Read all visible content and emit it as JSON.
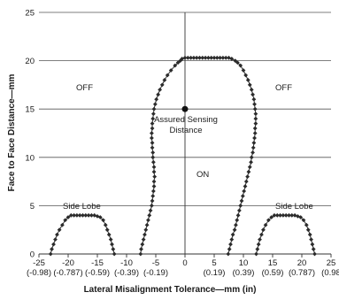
{
  "chart_data": {
    "type": "line",
    "title": "",
    "xlabel": "Lateral Misalignment Tolerance—mm (in)",
    "ylabel": "Face to Face Distance—mm",
    "xlim": [
      -25,
      25
    ],
    "ylim": [
      0,
      25
    ],
    "grid": "horizontal",
    "x_ticks": [
      {
        "value": -25,
        "mm": "-25",
        "inch": "(-0.98)"
      },
      {
        "value": -20,
        "mm": "-20",
        "inch": "(-0.787)"
      },
      {
        "value": -15,
        "mm": "-15",
        "inch": "(-0.59)"
      },
      {
        "value": -10,
        "mm": "-10",
        "inch": "(-0.39)"
      },
      {
        "value": -5,
        "mm": "-5",
        "inch": "(-0.19)"
      },
      {
        "value": 0,
        "mm": "0",
        "inch": ""
      },
      {
        "value": 5,
        "mm": "5",
        "inch": "(0.19)"
      },
      {
        "value": 10,
        "mm": "10",
        "inch": "(0.39)"
      },
      {
        "value": 15,
        "mm": "15",
        "inch": "(0.59)"
      },
      {
        "value": 20,
        "mm": "20",
        "inch": "(0.787)"
      },
      {
        "value": 25,
        "mm": "25",
        "inch": "(0.98"
      }
    ],
    "y_ticks": [
      "0",
      "5",
      "10",
      "15",
      "20",
      "25"
    ],
    "annotations": {
      "off_left": "OFF",
      "off_right": "OFF",
      "on": "ON",
      "assured_line1": "Assured Sensing",
      "assured_line2": "Distance",
      "side_lobe_left": "Side Lobe",
      "side_lobe_right": "Side Lobe"
    },
    "assured_point": {
      "x": 0,
      "y": 15
    },
    "series": [
      {
        "values": [
          [
            -7.6,
            0
          ],
          [
            -7.5,
            0.5
          ],
          [
            -7.3,
            1
          ],
          [
            -7.1,
            1.5
          ],
          [
            -6.9,
            2
          ],
          [
            -6.7,
            2.5
          ],
          [
            -6.5,
            3
          ],
          [
            -6.3,
            3.5
          ],
          [
            -6.1,
            4
          ],
          [
            -5.9,
            4.5
          ],
          [
            -5.7,
            5
          ],
          [
            -5.6,
            5.5
          ],
          [
            -5.5,
            6
          ],
          [
            -5.4,
            6.5
          ],
          [
            -5.3,
            7
          ],
          [
            -5.3,
            7.5
          ],
          [
            -5.2,
            8
          ],
          [
            -5.3,
            8.5
          ],
          [
            -5.3,
            9
          ],
          [
            -5.4,
            9.5
          ],
          [
            -5.5,
            10
          ],
          [
            -5.5,
            10.5
          ],
          [
            -5.6,
            11
          ],
          [
            -5.6,
            11.5
          ],
          [
            -5.7,
            12
          ],
          [
            -5.7,
            12.5
          ],
          [
            -5.6,
            13
          ],
          [
            -5.6,
            13.5
          ],
          [
            -5.5,
            14
          ],
          [
            -5.4,
            14.5
          ],
          [
            -5.3,
            15
          ],
          [
            -5.1,
            15.5
          ],
          [
            -4.9,
            16
          ],
          [
            -4.6,
            16.5
          ],
          [
            -4.3,
            17
          ],
          [
            -3.9,
            17.5
          ],
          [
            -3.5,
            18
          ],
          [
            -3,
            18.5
          ],
          [
            -2.4,
            19
          ],
          [
            -1.7,
            19.5
          ],
          [
            -1.2,
            19.8
          ],
          [
            -0.8,
            20
          ],
          [
            -0.5,
            20.2
          ],
          [
            0,
            20.3
          ],
          [
            0.5,
            20.3
          ],
          [
            1,
            20.3
          ],
          [
            1.5,
            20.3
          ],
          [
            2,
            20.3
          ],
          [
            2.5,
            20.3
          ],
          [
            3,
            20.3
          ],
          [
            3.5,
            20.3
          ],
          [
            4,
            20.3
          ],
          [
            4.5,
            20.3
          ],
          [
            5,
            20.3
          ],
          [
            5.5,
            20.3
          ],
          [
            6,
            20.3
          ],
          [
            6.5,
            20.3
          ],
          [
            7,
            20.3
          ],
          [
            7.5,
            20.3
          ],
          [
            8,
            20.2
          ],
          [
            8.6,
            20
          ],
          [
            9,
            19.8
          ],
          [
            9.5,
            19.5
          ],
          [
            10,
            19
          ],
          [
            10.4,
            18.5
          ],
          [
            10.8,
            18
          ],
          [
            11.1,
            17.5
          ],
          [
            11.4,
            17
          ],
          [
            11.6,
            16.5
          ],
          [
            11.8,
            16
          ],
          [
            11.9,
            15.5
          ],
          [
            12,
            15
          ],
          [
            12.1,
            14.5
          ],
          [
            12.1,
            14
          ],
          [
            12.1,
            13.5
          ],
          [
            12,
            13
          ],
          [
            12,
            12.5
          ],
          [
            11.9,
            12
          ],
          [
            11.8,
            11.5
          ],
          [
            11.7,
            11
          ],
          [
            11.6,
            10.5
          ],
          [
            11.4,
            10
          ],
          [
            11.3,
            9.5
          ],
          [
            11.1,
            9
          ],
          [
            10.9,
            8.5
          ],
          [
            10.7,
            8
          ],
          [
            10.5,
            7.5
          ],
          [
            10.3,
            7
          ],
          [
            10.1,
            6.5
          ],
          [
            9.9,
            6
          ],
          [
            9.7,
            5.5
          ],
          [
            9.5,
            5
          ],
          [
            9.3,
            4.5
          ],
          [
            9.1,
            4
          ],
          [
            8.9,
            3.5
          ],
          [
            8.7,
            3
          ],
          [
            8.5,
            2.5
          ],
          [
            8.2,
            2
          ],
          [
            8,
            1.5
          ],
          [
            7.8,
            1
          ],
          [
            7.6,
            0.5
          ],
          [
            7.4,
            0
          ]
        ]
      },
      {
        "values": [
          [
            -23,
            0
          ],
          [
            -22.8,
            0.5
          ],
          [
            -22.5,
            1
          ],
          [
            -22.2,
            1.5
          ],
          [
            -21.9,
            2
          ],
          [
            -21.5,
            2.5
          ],
          [
            -21,
            3
          ],
          [
            -20.5,
            3.5
          ],
          [
            -20,
            3.8
          ],
          [
            -19.5,
            4
          ],
          [
            -19,
            4
          ],
          [
            -18.5,
            4
          ],
          [
            -18,
            4
          ],
          [
            -17.5,
            4
          ],
          [
            -17,
            4
          ],
          [
            -16.5,
            4
          ],
          [
            -16,
            4
          ],
          [
            -15.5,
            4
          ],
          [
            -15,
            3.9
          ],
          [
            -14.5,
            3.8
          ],
          [
            -14,
            3.5
          ],
          [
            -13.6,
            3
          ],
          [
            -13.3,
            2.5
          ],
          [
            -13,
            2
          ],
          [
            -12.7,
            1.5
          ],
          [
            -12.5,
            1
          ],
          [
            -12.3,
            0.5
          ],
          [
            -12.1,
            0
          ]
        ]
      },
      {
        "values": [
          [
            12.2,
            0
          ],
          [
            12.4,
            0.5
          ],
          [
            12.6,
            1
          ],
          [
            12.8,
            1.5
          ],
          [
            13.1,
            2
          ],
          [
            13.4,
            2.5
          ],
          [
            13.8,
            3
          ],
          [
            14.3,
            3.5
          ],
          [
            14.8,
            3.8
          ],
          [
            15.3,
            4
          ],
          [
            15.8,
            4
          ],
          [
            16.3,
            4
          ],
          [
            16.8,
            4
          ],
          [
            17.3,
            4
          ],
          [
            17.8,
            4
          ],
          [
            18.3,
            4
          ],
          [
            18.8,
            4
          ],
          [
            19.3,
            3.9
          ],
          [
            19.8,
            3.8
          ],
          [
            20.3,
            3.5
          ],
          [
            20.8,
            3
          ],
          [
            21.1,
            2.5
          ],
          [
            21.4,
            2
          ],
          [
            21.6,
            1.5
          ],
          [
            21.8,
            1
          ],
          [
            22,
            0.5
          ],
          [
            22.2,
            0
          ]
        ]
      }
    ]
  }
}
